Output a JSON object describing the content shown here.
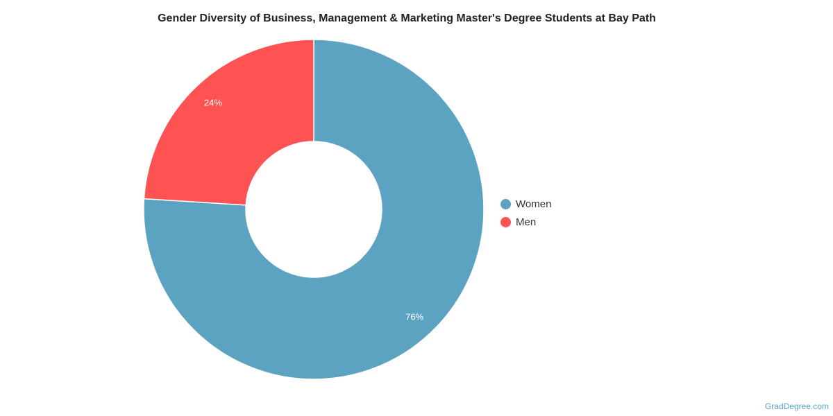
{
  "chart_data": {
    "type": "pie",
    "donut": true,
    "title": "Gender Diversity of Business, Management & Marketing Master's Degree Students at Bay Path",
    "series": [
      {
        "name": "Women",
        "value": 76,
        "label": "76%",
        "color": "#5ba3c0"
      },
      {
        "name": "Men",
        "value": 24,
        "label": "24%",
        "color": "#ff5252"
      }
    ],
    "legend_position": "right"
  },
  "credit": "GradDegree.com"
}
